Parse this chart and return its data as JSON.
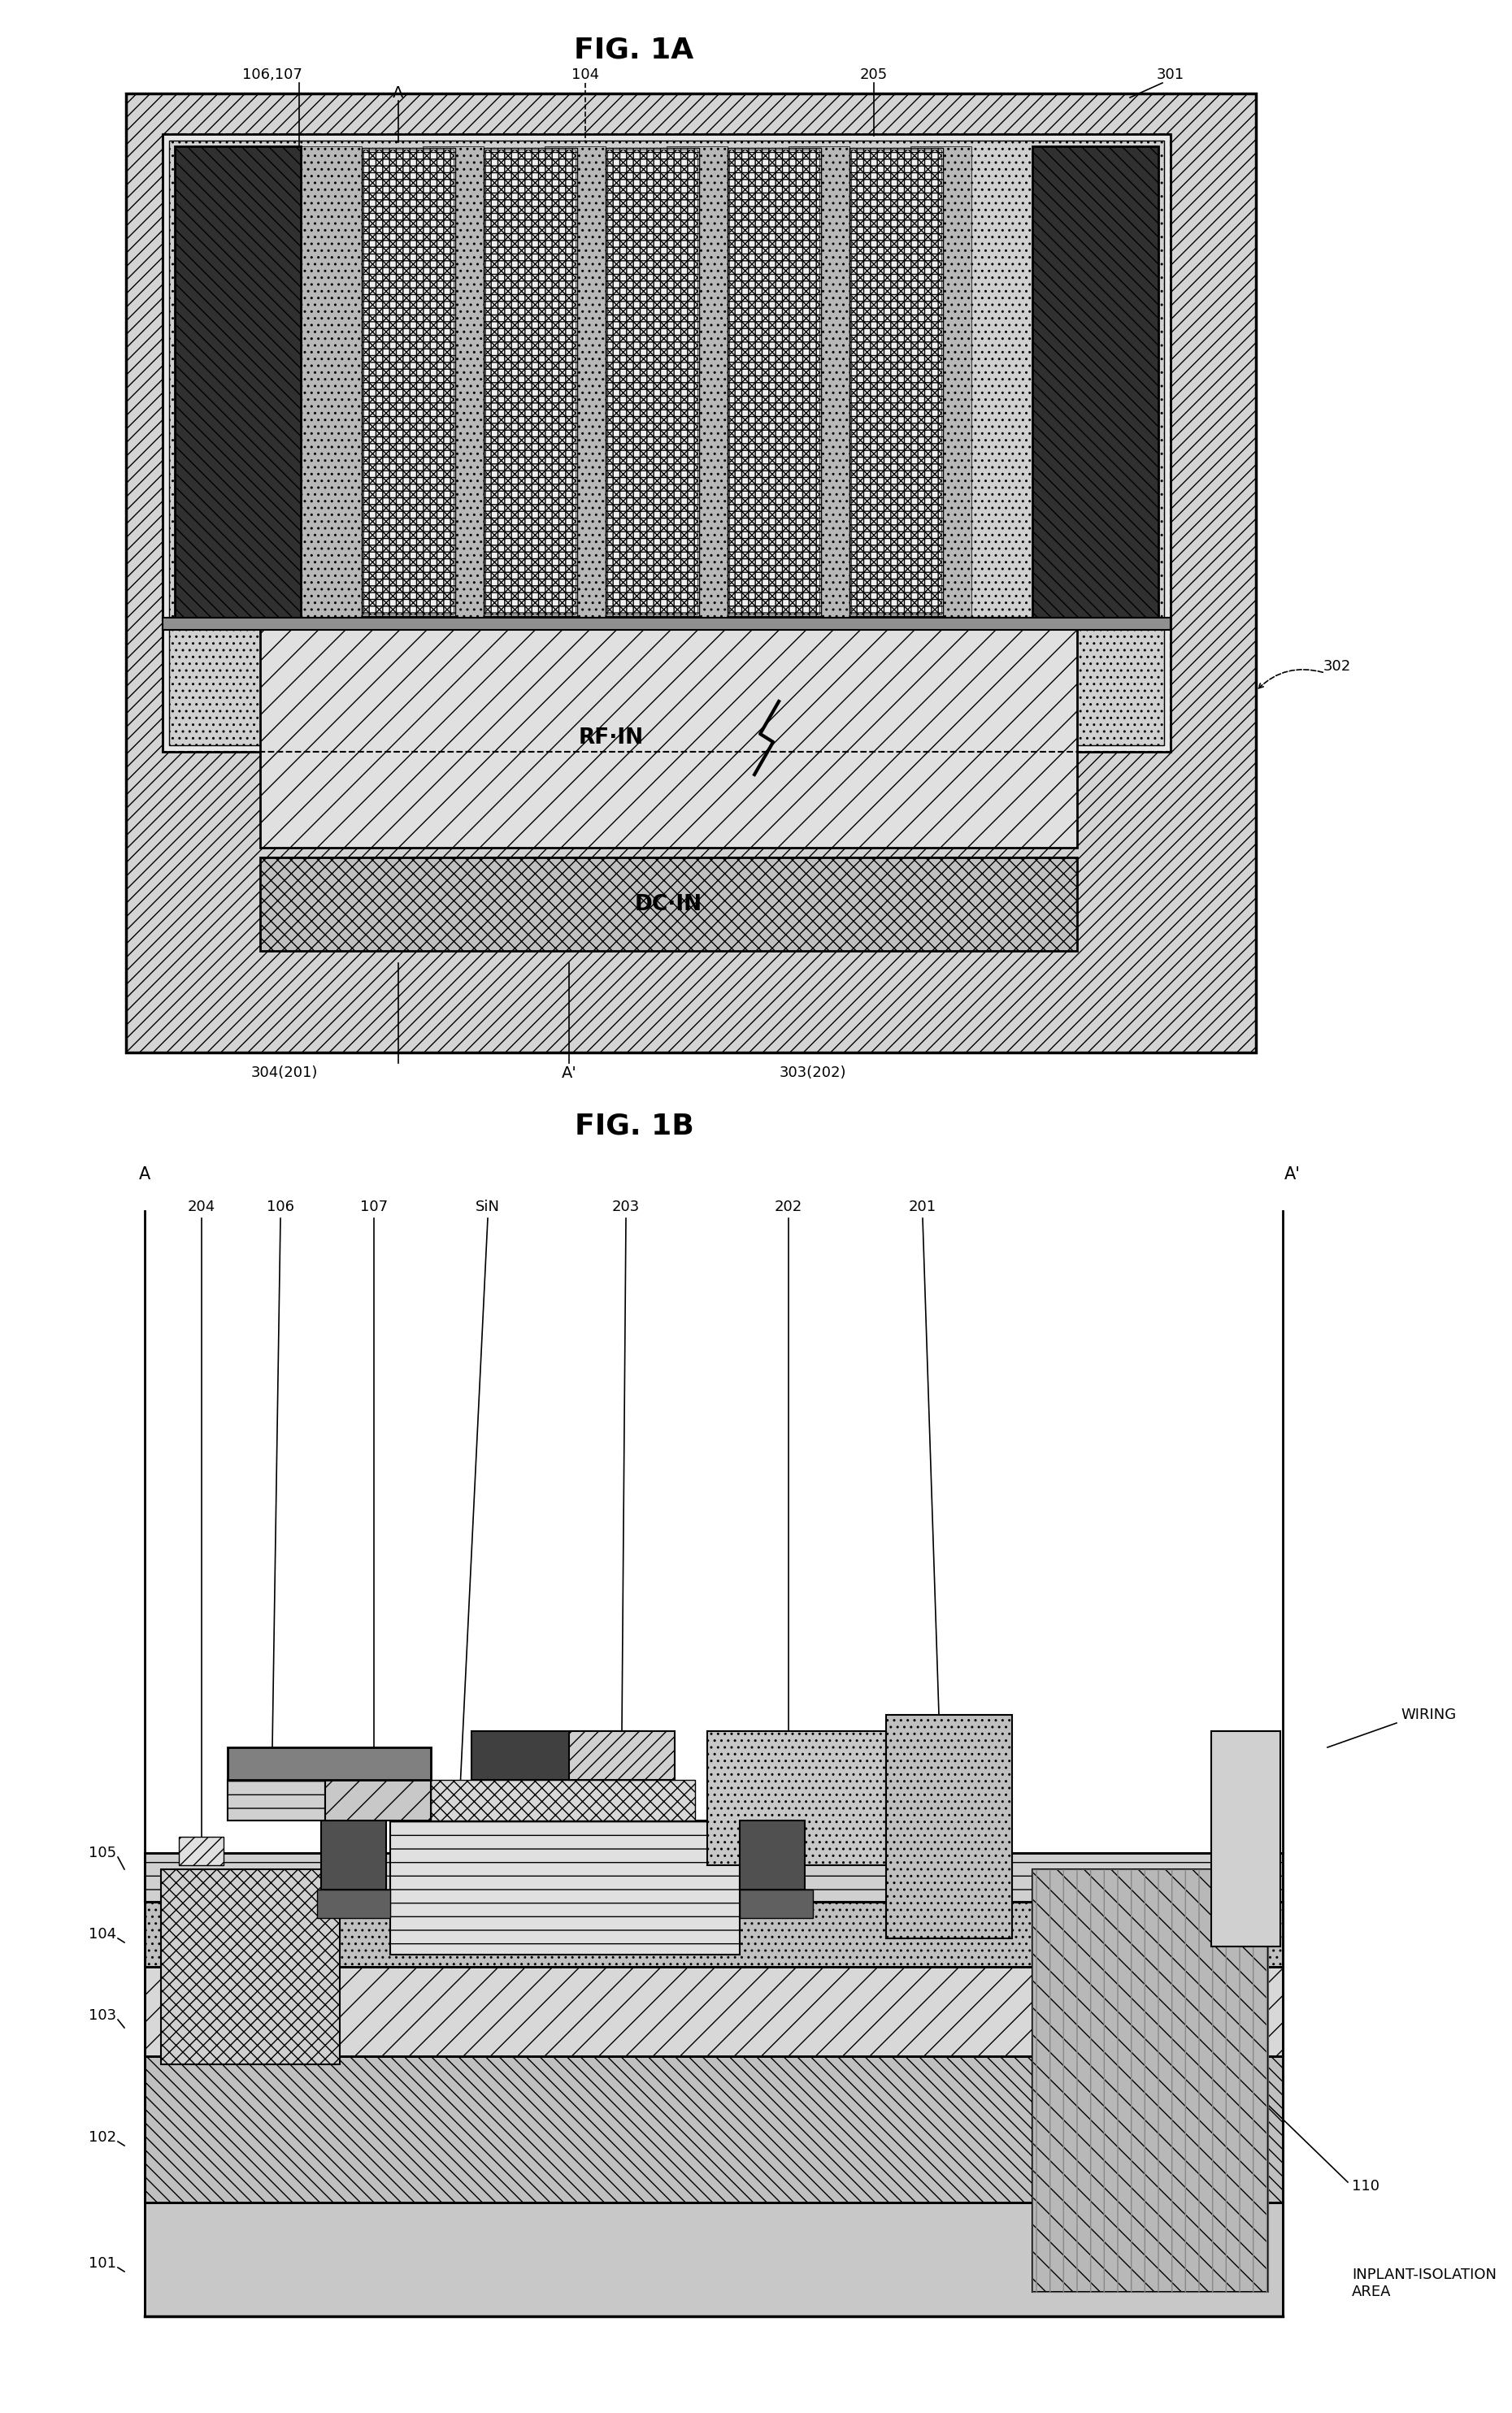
{
  "fig_title_1a": "FIG. 1A",
  "fig_title_1b": "FIG. 1B",
  "bg_color": "#ffffff",
  "line_color": "#000000",
  "labels_1a": {
    "106_107": "106,107",
    "104": "104",
    "205": "205",
    "301": "301",
    "302": "302",
    "A": "A",
    "A_prime": "A'",
    "304_201": "304(201)",
    "303_202": "303(202)",
    "RF_IN": "RF·IN",
    "DC_IN": "DC·IN"
  },
  "labels_1b": {
    "204": "204",
    "106": "106",
    "107": "107",
    "SiN": "SiN",
    "203": "203",
    "202": "202",
    "201": "201",
    "105": "105",
    "104": "104",
    "103": "103",
    "102": "102",
    "101": "101",
    "110": "110",
    "WIRING": "WIRING",
    "INPLANT_ISOLATION": "INPLANT-ISOLATION\nAREA",
    "A": "A",
    "A_prime": "A'"
  }
}
